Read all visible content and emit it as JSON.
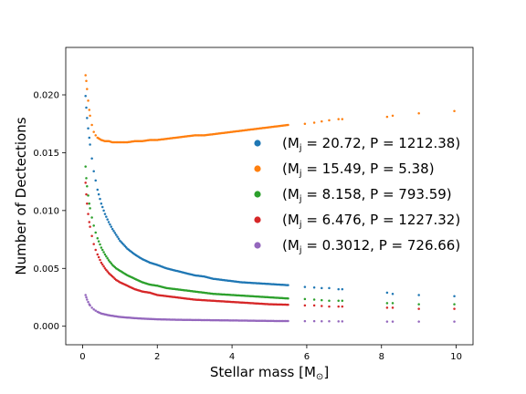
{
  "chart_data": {
    "type": "scatter",
    "xlabel": "Stellar mass [M",
    "xlabel_sub": "⊙",
    "xlabel_close": "]",
    "ylabel": "Number of Dectections",
    "xlim": [
      -0.45,
      10.45
    ],
    "ylim": [
      -0.0016,
      0.0241
    ],
    "xticks": [
      0,
      2,
      4,
      6,
      8,
      10
    ],
    "xtick_labels": [
      "0",
      "2",
      "4",
      "6",
      "8",
      "10"
    ],
    "yticks": [
      0.0,
      0.005,
      0.01,
      0.015,
      0.02
    ],
    "ytick_labels": [
      "0.000",
      "0.005",
      "0.010",
      "0.015",
      "0.020"
    ],
    "grid": false,
    "legend_position": "right",
    "series": [
      {
        "name_pre": "(M",
        "name_sub": "j",
        "name_post": " = 20.72, P = 1212.38)",
        "color": "#1f77b4",
        "x": [
          0.08,
          0.1,
          0.12,
          0.15,
          0.18,
          0.2,
          0.25,
          0.3,
          0.35,
          0.4,
          0.5,
          0.6,
          0.7,
          0.8,
          0.9,
          1.0,
          1.2,
          1.4,
          1.6,
          1.8,
          2.0,
          2.25,
          2.5,
          2.75,
          3.0,
          3.25,
          3.5,
          3.75,
          4.0,
          4.25,
          4.5,
          4.75,
          5.0,
          5.25,
          5.5,
          5.95,
          6.2,
          6.4,
          6.6,
          6.85,
          6.95,
          8.15,
          8.3,
          9.0,
          9.95
        ],
        "y": [
          0.0199,
          0.0189,
          0.018,
          0.0171,
          0.0163,
          0.0157,
          0.0145,
          0.0134,
          0.0126,
          0.0118,
          0.0106,
          0.0097,
          0.009,
          0.0084,
          0.0079,
          0.0074,
          0.0067,
          0.0062,
          0.0058,
          0.0055,
          0.0053,
          0.005,
          0.0048,
          0.0046,
          0.0044,
          0.0043,
          0.0041,
          0.004,
          0.0039,
          0.0038,
          0.00375,
          0.0037,
          0.00365,
          0.0036,
          0.00355,
          0.0034,
          0.00335,
          0.0033,
          0.0033,
          0.0032,
          0.0032,
          0.0029,
          0.0028,
          0.0027,
          0.0026
        ]
      },
      {
        "name_pre": "(M",
        "name_sub": "j",
        "name_post": " = 15.49, P = 5.38)",
        "color": "#ff7f0e",
        "x": [
          0.08,
          0.1,
          0.12,
          0.15,
          0.18,
          0.2,
          0.25,
          0.3,
          0.35,
          0.4,
          0.5,
          0.6,
          0.7,
          0.8,
          0.9,
          1.0,
          1.2,
          1.4,
          1.6,
          1.8,
          2.0,
          2.25,
          2.5,
          2.75,
          3.0,
          3.25,
          3.5,
          3.75,
          4.0,
          4.25,
          4.5,
          4.75,
          5.0,
          5.25,
          5.5,
          5.95,
          6.2,
          6.4,
          6.6,
          6.85,
          6.95,
          8.15,
          8.3,
          9.0,
          9.95
        ],
        "y": [
          0.0217,
          0.0212,
          0.0205,
          0.0195,
          0.0187,
          0.0182,
          0.0174,
          0.0168,
          0.0165,
          0.0163,
          0.0161,
          0.016,
          0.016,
          0.0159,
          0.0159,
          0.0159,
          0.0159,
          0.016,
          0.016,
          0.0161,
          0.0161,
          0.0162,
          0.0163,
          0.0164,
          0.0165,
          0.0165,
          0.0166,
          0.0167,
          0.0168,
          0.0169,
          0.017,
          0.0171,
          0.0172,
          0.0173,
          0.0174,
          0.0175,
          0.0176,
          0.0177,
          0.0178,
          0.0179,
          0.0179,
          0.0181,
          0.0182,
          0.0184,
          0.0186
        ]
      },
      {
        "name_pre": "(M",
        "name_sub": "j",
        "name_post": " = 8.158, P = 793.59)",
        "color": "#2ca02c",
        "x": [
          0.08,
          0.1,
          0.12,
          0.15,
          0.18,
          0.2,
          0.25,
          0.3,
          0.35,
          0.4,
          0.5,
          0.6,
          0.7,
          0.8,
          0.9,
          1.0,
          1.2,
          1.4,
          1.6,
          1.8,
          2.0,
          2.25,
          2.5,
          2.75,
          3.0,
          3.25,
          3.5,
          3.75,
          4.0,
          4.25,
          4.5,
          4.75,
          5.0,
          5.25,
          5.5,
          5.95,
          6.2,
          6.4,
          6.6,
          6.85,
          6.95,
          8.15,
          8.3,
          9.0,
          9.95
        ],
        "y": [
          0.0138,
          0.0128,
          0.0121,
          0.0113,
          0.0106,
          0.0102,
          0.0094,
          0.0087,
          0.0081,
          0.0076,
          0.0068,
          0.0062,
          0.0057,
          0.0053,
          0.005,
          0.0048,
          0.0044,
          0.0041,
          0.0038,
          0.0036,
          0.0035,
          0.0033,
          0.0032,
          0.0031,
          0.003,
          0.0029,
          0.0028,
          0.00275,
          0.0027,
          0.00265,
          0.0026,
          0.00255,
          0.0025,
          0.00245,
          0.0024,
          0.00235,
          0.0023,
          0.00225,
          0.0022,
          0.0022,
          0.0022,
          0.002,
          0.002,
          0.0019,
          0.0019
        ]
      },
      {
        "name_pre": "(M",
        "name_sub": "j",
        "name_post": " = 6.476, P = 1227.32)",
        "color": "#d62728",
        "x": [
          0.08,
          0.1,
          0.12,
          0.15,
          0.18,
          0.2,
          0.25,
          0.3,
          0.35,
          0.4,
          0.5,
          0.6,
          0.7,
          0.8,
          0.9,
          1.0,
          1.2,
          1.4,
          1.6,
          1.8,
          2.0,
          2.25,
          2.5,
          2.75,
          3.0,
          3.25,
          3.5,
          3.75,
          4.0,
          4.25,
          4.5,
          4.75,
          5.0,
          5.25,
          5.5,
          5.95,
          6.2,
          6.4,
          6.6,
          6.85,
          6.95,
          8.15,
          8.3,
          9.0,
          9.95
        ],
        "y": [
          0.0124,
          0.0114,
          0.0106,
          0.0097,
          0.009,
          0.0086,
          0.0078,
          0.0071,
          0.0066,
          0.0062,
          0.0055,
          0.005,
          0.0046,
          0.0043,
          0.004,
          0.0038,
          0.0035,
          0.0032,
          0.003,
          0.0029,
          0.0027,
          0.0026,
          0.0025,
          0.0024,
          0.0023,
          0.00225,
          0.0022,
          0.00215,
          0.0021,
          0.00205,
          0.002,
          0.00195,
          0.0019,
          0.00188,
          0.00186,
          0.0018,
          0.0018,
          0.00175,
          0.0017,
          0.0017,
          0.0017,
          0.0016,
          0.0016,
          0.0015,
          0.0015
        ]
      },
      {
        "name_pre": "(M",
        "name_sub": "j",
        "name_post": " = 0.3012, P = 726.66)",
        "color": "#9467bd",
        "x": [
          0.08,
          0.1,
          0.12,
          0.15,
          0.18,
          0.2,
          0.25,
          0.3,
          0.35,
          0.4,
          0.5,
          0.6,
          0.7,
          0.8,
          0.9,
          1.0,
          1.2,
          1.4,
          1.6,
          1.8,
          2.0,
          2.25,
          2.5,
          2.75,
          3.0,
          3.25,
          3.5,
          3.75,
          4.0,
          4.25,
          4.5,
          4.75,
          5.0,
          5.25,
          5.5,
          5.95,
          6.2,
          6.4,
          6.6,
          6.85,
          6.95,
          8.15,
          8.3,
          9.0,
          9.95
        ],
        "y": [
          0.0027,
          0.0025,
          0.0023,
          0.0021,
          0.0019,
          0.0018,
          0.0016,
          0.00145,
          0.00135,
          0.00125,
          0.0011,
          0.00102,
          0.00095,
          0.0009,
          0.00085,
          0.0008,
          0.00075,
          0.0007,
          0.00066,
          0.00063,
          0.0006,
          0.00058,
          0.00056,
          0.00055,
          0.00054,
          0.00053,
          0.00052,
          0.00051,
          0.0005,
          0.00049,
          0.00048,
          0.00047,
          0.00046,
          0.00045,
          0.00045,
          0.00044,
          0.00044,
          0.00043,
          0.00043,
          0.00042,
          0.00042,
          0.0004,
          0.0004,
          0.0004,
          0.0004
        ]
      }
    ]
  }
}
